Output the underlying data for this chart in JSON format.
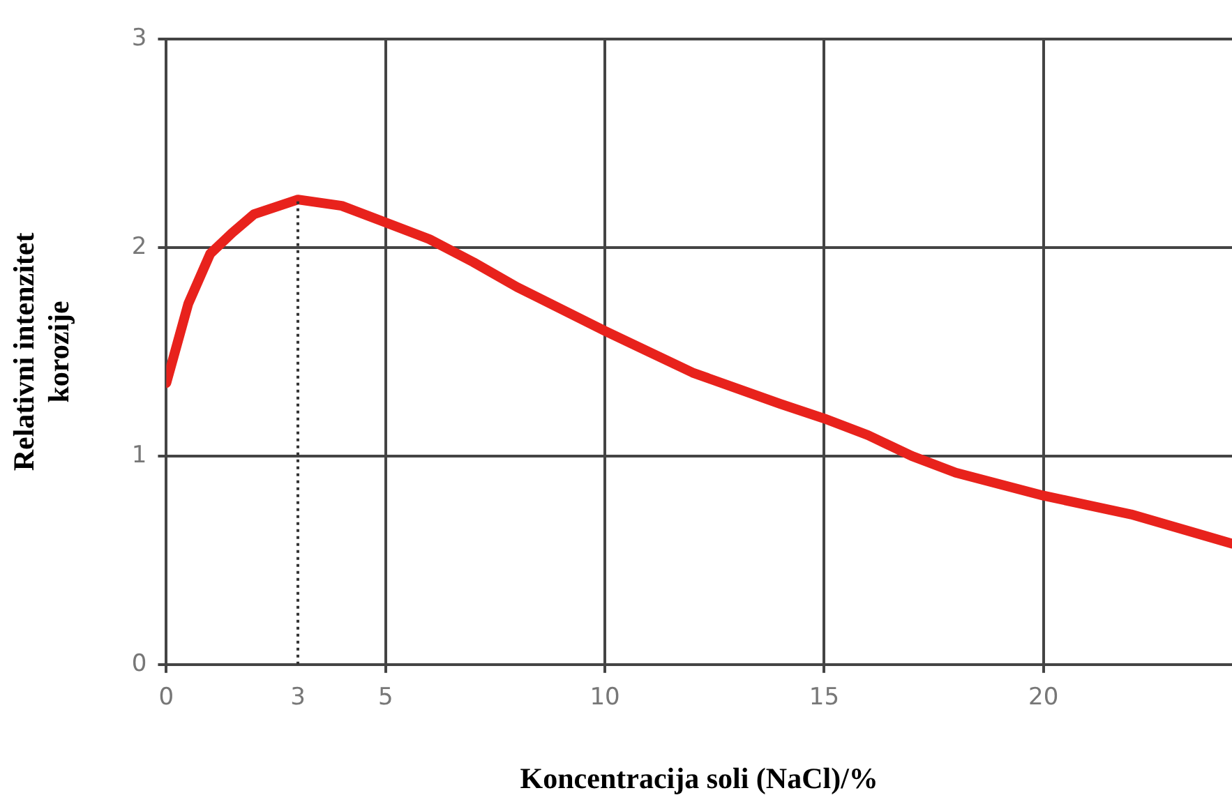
{
  "chart_data": {
    "type": "line",
    "xlabel": "Koncentracija soli (NaCl)/%",
    "ylabel": "Relativni intenzitet korozije",
    "x": [
      0,
      0.5,
      1,
      1.5,
      2,
      3,
      4,
      5,
      6,
      7,
      8,
      10,
      12,
      14,
      15,
      16,
      17,
      18,
      20,
      22,
      24.3
    ],
    "series": [
      {
        "color": "#e8221c",
        "values": [
          1.35,
          1.73,
          1.97,
          2.07,
          2.16,
          2.23,
          2.2,
          2.12,
          2.04,
          1.93,
          1.81,
          1.6,
          1.4,
          1.25,
          1.18,
          1.1,
          1.0,
          0.92,
          0.81,
          0.72,
          0.58
        ]
      }
    ],
    "xlim": [
      0,
      24.3
    ],
    "xticks": [
      0,
      3,
      5,
      10,
      15,
      20
    ],
    "ylim": [
      0,
      3
    ],
    "yticks": [
      0,
      1,
      2,
      3
    ],
    "ref_lines": [
      {
        "axis": "x",
        "value": 3,
        "line_style": "dotted",
        "color": "#333333"
      }
    ],
    "grid": true,
    "legend": false,
    "marker": "none",
    "line_style": "solid"
  }
}
